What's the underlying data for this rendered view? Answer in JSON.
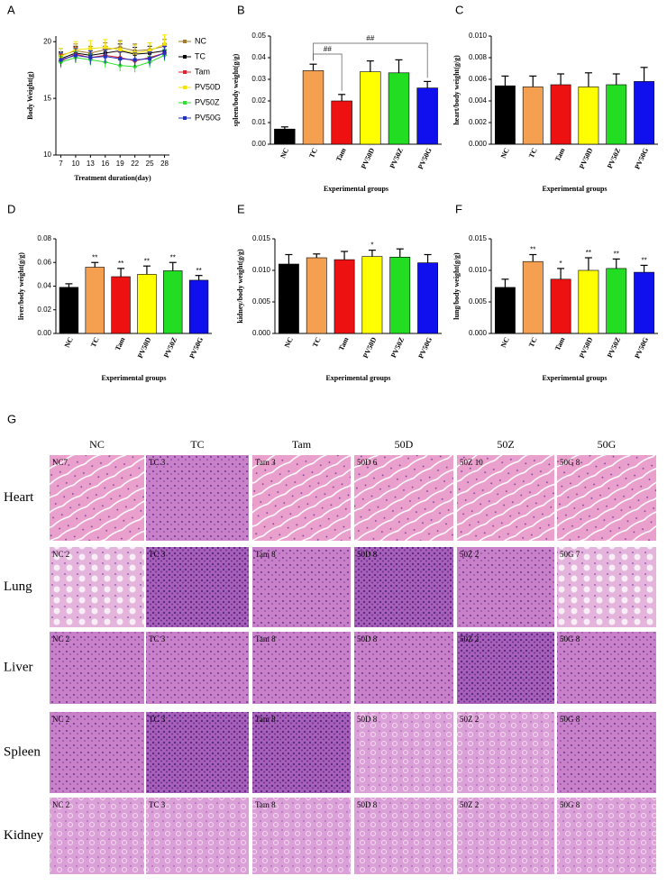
{
  "chart_data": [
    {
      "type": "line",
      "panel": "A",
      "ylabel": "Body Weight(g)",
      "xlabel": "Treatment duration(day)",
      "x": [
        7,
        10,
        13,
        16,
        19,
        22,
        25,
        28
      ],
      "xlim": [
        6,
        29
      ],
      "xticks": [
        7,
        10,
        13,
        16,
        19,
        22,
        25,
        28
      ],
      "ylim": [
        10,
        20.5
      ],
      "yticks": [
        10,
        15,
        20
      ],
      "legend": "right",
      "series": [
        {
          "name": "NC",
          "color": "#a07a2a",
          "values": [
            18.8,
            19.2,
            19.0,
            19.3,
            19.5,
            19.2,
            19.3,
            19.6
          ],
          "errors": [
            0.6,
            0.6,
            0.6,
            0.6,
            0.6,
            0.6,
            0.6,
            0.6
          ]
        },
        {
          "name": "TC",
          "color": "#000000",
          "values": [
            18.5,
            19.0,
            18.8,
            19.0,
            19.2,
            18.9,
            19.0,
            19.2
          ],
          "errors": [
            0.6,
            0.6,
            0.6,
            0.6,
            0.6,
            0.6,
            0.6,
            0.6
          ]
        },
        {
          "name": "Tam",
          "color": "#e0202a",
          "values": [
            18.3,
            18.9,
            18.6,
            18.8,
            18.6,
            18.3,
            18.6,
            19.0
          ],
          "errors": [
            0.6,
            0.6,
            0.6,
            0.6,
            0.6,
            0.6,
            0.6,
            0.6
          ]
        },
        {
          "name": "PV50D",
          "color": "#f5e400",
          "values": [
            18.7,
            19.3,
            19.4,
            19.5,
            19.3,
            19.0,
            19.2,
            19.8
          ],
          "errors": [
            0.7,
            0.7,
            0.7,
            0.7,
            0.7,
            0.7,
            0.7,
            0.8
          ]
        },
        {
          "name": "PV50Z",
          "color": "#33dd33",
          "values": [
            18.2,
            18.6,
            18.4,
            18.2,
            17.9,
            17.8,
            18.2,
            18.8
          ],
          "errors": [
            0.5,
            0.5,
            0.5,
            0.5,
            0.5,
            0.5,
            0.5,
            0.5
          ]
        },
        {
          "name": "PV50G",
          "color": "#2030c0",
          "values": [
            18.4,
            18.8,
            18.6,
            18.7,
            18.5,
            18.4,
            18.5,
            19.0
          ],
          "errors": [
            0.6,
            0.6,
            0.6,
            0.6,
            0.6,
            0.6,
            0.6,
            0.6
          ]
        }
      ]
    },
    {
      "type": "bar",
      "panel": "B",
      "ylabel": "spleen/body weight(g/g)",
      "xlabel": "Experimental groups",
      "categories": [
        "NC",
        "TC",
        "Tam",
        "PV50D",
        "PV50Z",
        "PV50G"
      ],
      "colors": [
        "#000000",
        "#f5a050",
        "#ee1111",
        "#ffff00",
        "#22dd22",
        "#1010ee"
      ],
      "values": [
        0.007,
        0.034,
        0.02,
        0.0335,
        0.033,
        0.026
      ],
      "errors": [
        0.001,
        0.003,
        0.003,
        0.005,
        0.006,
        0.003
      ],
      "ylim": [
        0,
        0.05
      ],
      "yticks": [
        {
          "value": 0,
          "label": "0.00"
        },
        0.01,
        0.02,
        0.03,
        0.04,
        0.05
      ],
      "annotations": [
        "##",
        "##"
      ]
    },
    {
      "type": "bar",
      "panel": "C",
      "ylabel": "heart/body weight(g/g)",
      "xlabel": "Experimental groups",
      "categories": [
        "NC",
        "TC",
        "Tam",
        "PV50D",
        "PV50Z",
        "PV50G"
      ],
      "colors": [
        "#000000",
        "#f5a050",
        "#ee1111",
        "#ffff00",
        "#22dd22",
        "#1010ee"
      ],
      "values": [
        0.0054,
        0.0053,
        0.0055,
        0.0053,
        0.0055,
        0.0058
      ],
      "errors": [
        0.0009,
        0.001,
        0.001,
        0.0013,
        0.001,
        0.0013
      ],
      "ylim": [
        0,
        0.01
      ],
      "yticks": [
        {
          "value": 0,
          "label": "0.000"
        },
        0.002,
        0.004,
        0.006,
        0.008,
        {
          "value": 0.01,
          "label": "0.010"
        }
      ]
    },
    {
      "type": "bar",
      "panel": "D",
      "ylabel": "liver/body weight(g/g)",
      "xlabel": "Experimental groups",
      "categories": [
        "NC",
        "TC",
        "Tam",
        "PV50D",
        "PV50Z",
        "PV50G"
      ],
      "colors": [
        "#000000",
        "#f5a050",
        "#ee1111",
        "#ffff00",
        "#22dd22",
        "#1010ee"
      ],
      "values": [
        0.039,
        0.056,
        0.048,
        0.05,
        0.053,
        0.045
      ],
      "errors": [
        0.003,
        0.004,
        0.007,
        0.007,
        0.007,
        0.004
      ],
      "significance": [
        null,
        "**",
        "**",
        "**",
        "**",
        "**"
      ],
      "ylim": [
        0,
        0.08
      ],
      "yticks": [
        {
          "value": 0,
          "label": "0.00"
        },
        0.02,
        0.04,
        0.06,
        0.08
      ]
    },
    {
      "type": "bar",
      "panel": "E",
      "ylabel": "kidney/body weight(g/g)",
      "xlabel": "Experimental groups",
      "categories": [
        "NC",
        "TC",
        "Tam",
        "PV50D",
        "PV50Z",
        "PV50G"
      ],
      "colors": [
        "#000000",
        "#f5a050",
        "#ee1111",
        "#ffff00",
        "#22dd22",
        "#1010ee"
      ],
      "values": [
        0.011,
        0.012,
        0.0117,
        0.0122,
        0.0121,
        0.0112
      ],
      "errors": [
        0.0015,
        0.0006,
        0.0013,
        0.001,
        0.0013,
        0.0013
      ],
      "significance": [
        null,
        null,
        null,
        "*",
        null,
        null
      ],
      "ylim": [
        0,
        0.015
      ],
      "yticks": [
        {
          "value": 0,
          "label": "0.000"
        },
        0.005,
        {
          "value": 0.01,
          "label": "0.010"
        },
        0.015
      ]
    },
    {
      "type": "bar",
      "panel": "F",
      "ylabel": "lung/body weight(g/g)",
      "xlabel": "Experimental groups",
      "categories": [
        "NC",
        "TC",
        "Tam",
        "PV50D",
        "PV50Z",
        "PV50G"
      ],
      "colors": [
        "#000000",
        "#f5a050",
        "#ee1111",
        "#ffff00",
        "#22dd22",
        "#1010ee"
      ],
      "values": [
        0.0073,
        0.0114,
        0.0086,
        0.01,
        0.0103,
        0.0097
      ],
      "errors": [
        0.0013,
        0.0011,
        0.0017,
        0.002,
        0.0015,
        0.0011
      ],
      "significance": [
        null,
        "**",
        "*",
        "**",
        "**",
        "**"
      ],
      "ylim": [
        0,
        0.015
      ],
      "yticks": [
        {
          "value": 0,
          "label": "0.000"
        },
        0.005,
        {
          "value": 0.01,
          "label": "0.010"
        },
        0.015
      ]
    }
  ],
  "histology": {
    "panel": "G",
    "columns": [
      "NC",
      "TC",
      "Tam",
      "50D",
      "50Z",
      "50G"
    ],
    "rows": [
      {
        "label": "Heart",
        "images": [
          "NC7",
          "TC 3",
          "Tam 3",
          "50D 6",
          "50Z 10",
          "50G 8"
        ]
      },
      {
        "label": "Lung",
        "images": [
          "NC 2",
          "TC 3",
          "Tam 8",
          "50D 8",
          "50Z 2",
          "50G 7"
        ]
      },
      {
        "label": "Liver",
        "images": [
          "NC 2",
          "TC 3",
          "Tam 8",
          "50D 8",
          "50Z 2",
          "50G 8"
        ]
      },
      {
        "label": "Spleen",
        "images": [
          "NC 2",
          "TC 3",
          "Tam 8",
          "50D 8",
          "50Z 2",
          "50G 8"
        ]
      },
      {
        "label": "Kidney",
        "images": [
          "NC 2",
          "TC 3",
          "Tam 8",
          "50D 8",
          "50Z 2",
          "50G 8"
        ]
      }
    ]
  }
}
